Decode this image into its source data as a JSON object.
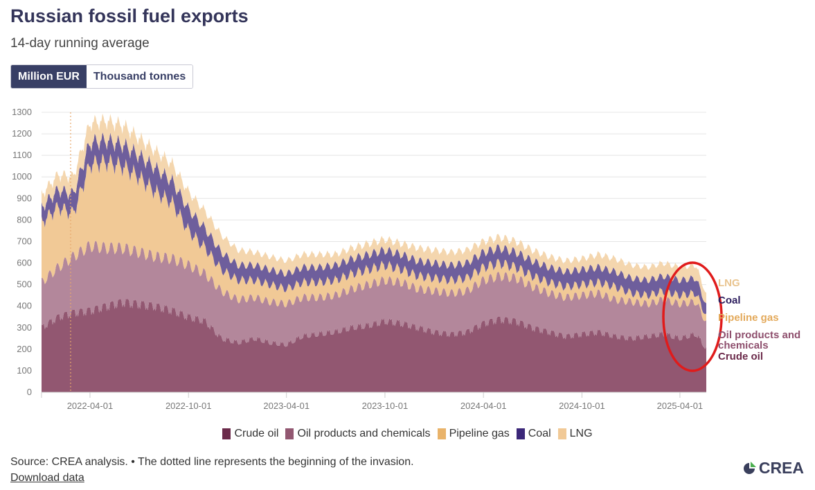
{
  "title": "Russian fossil fuel exports",
  "subtitle": "14-day running average",
  "toggle": {
    "active_label": "Million EUR",
    "inactive_label": "Thousand tonnes"
  },
  "footer": {
    "source": "Source: CREA analysis. • The dotted line represents the beginning of the invasion.",
    "download": "Download data",
    "logo_text": "CREA"
  },
  "colors": {
    "crude": "#925771",
    "oil_products": "#b3879b",
    "pipeline": "#f1c996",
    "coal": "#6e5e9c",
    "lng": "#f4d6ae",
    "highlight": "#e01b1b",
    "invasion": "#e8a86c"
  },
  "chart_data": {
    "type": "area",
    "stacked": true,
    "title": "Russian fossil fuel exports",
    "ylabel": "Million EUR",
    "ylim": [
      0,
      1300
    ],
    "y_ticks": [
      "0",
      "100",
      "200",
      "300",
      "400",
      "500",
      "600",
      "700",
      "800",
      "900",
      "1000",
      "1100",
      "1200",
      "1300"
    ],
    "x_ticks": [
      "2022-04-01",
      "2022-10-01",
      "2023-04-01",
      "2023-10-01",
      "2024-04-01",
      "2024-10-01",
      "2025-04-01"
    ],
    "x_domain": [
      "2022-01-01",
      "2025-05-20"
    ],
    "invasion_date": "2022-02-24",
    "x": [
      "2022-01-01",
      "2022-02-01",
      "2022-03-01",
      "2022-04-01",
      "2022-05-01",
      "2022-06-01",
      "2022-07-01",
      "2022-08-01",
      "2022-09-01",
      "2022-10-01",
      "2022-11-01",
      "2022-12-01",
      "2023-01-01",
      "2023-02-01",
      "2023-03-01",
      "2023-04-01",
      "2023-05-01",
      "2023-06-01",
      "2023-07-01",
      "2023-08-01",
      "2023-09-01",
      "2023-10-01",
      "2023-11-01",
      "2023-12-01",
      "2024-01-01",
      "2024-02-01",
      "2024-03-01",
      "2024-04-01",
      "2024-05-01",
      "2024-06-01",
      "2024-07-01",
      "2024-08-01",
      "2024-09-01",
      "2024-10-01",
      "2024-11-01",
      "2024-12-01",
      "2025-01-01",
      "2025-02-01",
      "2025-03-01",
      "2025-04-01",
      "2025-05-01",
      "2025-05-20"
    ],
    "series": [
      {
        "name": "Crude oil",
        "values": [
          300,
          350,
          370,
          380,
          400,
          420,
          410,
          400,
          380,
          350,
          330,
          250,
          230,
          250,
          230,
          220,
          260,
          270,
          280,
          300,
          310,
          330,
          320,
          300,
          280,
          270,
          280,
          320,
          340,
          330,
          300,
          280,
          260,
          270,
          280,
          260,
          250,
          260,
          270,
          250,
          270,
          200
        ]
      },
      {
        "name": "Oil products and chemicals",
        "values": [
          210,
          230,
          260,
          300,
          270,
          250,
          240,
          230,
          240,
          240,
          220,
          220,
          200,
          190,
          190,
          190,
          180,
          170,
          170,
          180,
          190,
          190,
          190,
          180,
          190,
          190,
          190,
          200,
          200,
          200,
          190,
          180,
          180,
          180,
          180,
          170,
          170,
          150,
          160,
          160,
          150,
          120
        ]
      },
      {
        "name": "Pipeline gas",
        "values": [
          280,
          280,
          200,
          380,
          400,
          380,
          350,
          300,
          260,
          160,
          120,
          100,
          90,
          80,
          80,
          70,
          70,
          70,
          70,
          70,
          70,
          70,
          60,
          60,
          60,
          60,
          60,
          60,
          60,
          50,
          50,
          50,
          50,
          50,
          50,
          60,
          40,
          40,
          40,
          40,
          40,
          30
        ]
      },
      {
        "name": "Coal",
        "values": [
          70,
          80,
          90,
          100,
          100,
          100,
          100,
          110,
          100,
          100,
          90,
          80,
          70,
          70,
          70,
          70,
          70,
          70,
          70,
          70,
          70,
          70,
          70,
          70,
          70,
          70,
          70,
          70,
          70,
          70,
          70,
          70,
          70,
          70,
          70,
          70,
          70,
          70,
          70,
          70,
          70,
          50
        ]
      },
      {
        "name": "LNG",
        "values": [
          60,
          70,
          80,
          90,
          90,
          90,
          80,
          80,
          80,
          80,
          80,
          80,
          70,
          60,
          60,
          60,
          60,
          60,
          50,
          50,
          50,
          50,
          50,
          60,
          60,
          60,
          60,
          50,
          50,
          50,
          50,
          50,
          50,
          50,
          60,
          60,
          60,
          60,
          60,
          60,
          60,
          50
        ]
      }
    ],
    "end_labels": [
      "LNG",
      "Coal",
      "Pipeline gas",
      "Oil products and chemicals",
      "Crude oil"
    ],
    "legend": [
      "Crude oil",
      "Oil products and chemicals",
      "Pipeline gas",
      "Coal",
      "LNG"
    ],
    "legend_position": "bottom"
  }
}
